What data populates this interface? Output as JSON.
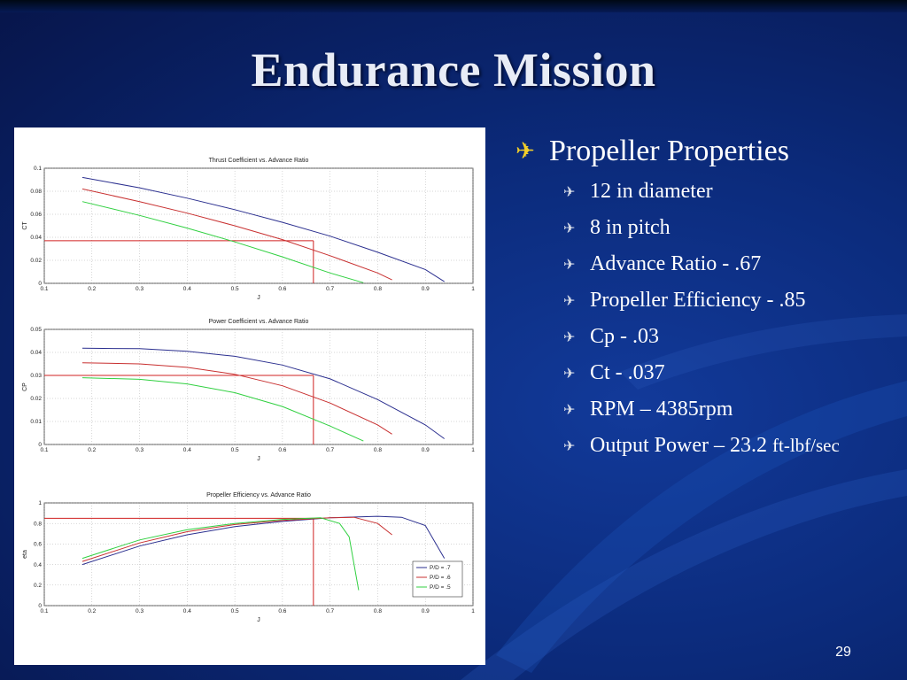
{
  "slide": {
    "title": "Endurance Mission",
    "page_number": "29",
    "colors": {
      "background": "#0b2a7a",
      "bullet_main": "#f2cf2a",
      "bullet_sub": "#d8dde8"
    }
  },
  "bullets": {
    "main": {
      "icon": "airplane-icon",
      "text": "Propeller Properties"
    },
    "items": [
      {
        "icon": "airplane-icon",
        "text": "12 in diameter"
      },
      {
        "icon": "airplane-icon",
        "text": "8 in pitch"
      },
      {
        "icon": "airplane-icon",
        "text": "Advance Ratio - .67"
      },
      {
        "icon": "airplane-icon",
        "text": "Propeller Efficiency - .85"
      },
      {
        "icon": "airplane-icon",
        "text": "Cp - .03"
      },
      {
        "icon": "airplane-icon",
        "text": "Ct - .037"
      },
      {
        "icon": "airplane-icon",
        "text": "RPM – 4385rpm"
      },
      {
        "icon": "airplane-icon",
        "text": "Output Power – 23.2",
        "suffix": "ft-lbf/sec"
      }
    ]
  },
  "chart_data": [
    {
      "type": "line",
      "title": "Thrust Coefficient vs. Advance Ratio",
      "xlabel": "J",
      "ylabel": "CT",
      "xlim": [
        0.1,
        1
      ],
      "ylim": [
        0,
        0.1
      ],
      "xticks": [
        "0.1",
        "0.2",
        "0.3",
        "0.4",
        "0.5",
        "0.6",
        "0.7",
        "0.8",
        "0.9",
        "1"
      ],
      "yticks": [
        "0",
        "0.02",
        "0.04",
        "0.06",
        "0.08",
        "0.1"
      ],
      "grid": true,
      "series": [
        {
          "color": "#2b2f8f",
          "x": [
            0.18,
            0.3,
            0.4,
            0.5,
            0.6,
            0.7,
            0.8,
            0.9,
            0.94
          ],
          "y": [
            0.092,
            0.083,
            0.074,
            0.064,
            0.053,
            0.041,
            0.027,
            0.012,
            0.0015
          ]
        },
        {
          "color": "#c83030",
          "x": [
            0.18,
            0.3,
            0.4,
            0.5,
            0.6,
            0.7,
            0.8,
            0.83
          ],
          "y": [
            0.082,
            0.071,
            0.061,
            0.05,
            0.038,
            0.024,
            0.009,
            0.003
          ]
        },
        {
          "color": "#30d040",
          "x": [
            0.18,
            0.3,
            0.4,
            0.5,
            0.6,
            0.7,
            0.77
          ],
          "y": [
            0.071,
            0.059,
            0.048,
            0.036,
            0.023,
            0.009,
            0.0005
          ]
        }
      ],
      "reference": {
        "x": 0.665,
        "y": 0.037,
        "color": "#d02020"
      }
    },
    {
      "type": "line",
      "title": "Power Coefficient vs. Advance Ratio",
      "xlabel": "J",
      "ylabel": "CP",
      "xlim": [
        0.1,
        1
      ],
      "ylim": [
        0,
        0.05
      ],
      "xticks": [
        "0.1",
        "0.2",
        "0.3",
        "0.4",
        "0.5",
        "0.6",
        "0.7",
        "0.8",
        "0.9",
        "1"
      ],
      "yticks": [
        "0",
        "0.01",
        "0.02",
        "0.03",
        "0.04",
        "0.05"
      ],
      "grid": true,
      "series": [
        {
          "color": "#2b2f8f",
          "x": [
            0.18,
            0.3,
            0.4,
            0.5,
            0.6,
            0.7,
            0.8,
            0.9,
            0.94
          ],
          "y": [
            0.0418,
            0.0416,
            0.0405,
            0.0383,
            0.0345,
            0.0285,
            0.0195,
            0.0085,
            0.0025
          ]
        },
        {
          "color": "#c83030",
          "x": [
            0.18,
            0.3,
            0.4,
            0.5,
            0.6,
            0.7,
            0.8,
            0.83
          ],
          "y": [
            0.0355,
            0.035,
            0.0335,
            0.0305,
            0.0255,
            0.018,
            0.0085,
            0.0045
          ]
        },
        {
          "color": "#30d040",
          "x": [
            0.18,
            0.3,
            0.4,
            0.5,
            0.6,
            0.7,
            0.77
          ],
          "y": [
            0.029,
            0.0283,
            0.0263,
            0.0225,
            0.0165,
            0.008,
            0.0015
          ]
        }
      ],
      "reference": {
        "x": 0.665,
        "y": 0.03,
        "color": "#d02020"
      }
    },
    {
      "type": "line",
      "title": "Propeller Efficiency vs. Advance Ratio",
      "xlabel": "J",
      "ylabel": "eta",
      "xlim": [
        0.1,
        1
      ],
      "ylim": [
        0,
        1
      ],
      "xticks": [
        "0.1",
        "0.2",
        "0.3",
        "0.4",
        "0.5",
        "0.6",
        "0.7",
        "0.8",
        "0.9",
        "1"
      ],
      "yticks": [
        "0",
        "0.2",
        "0.4",
        "0.6",
        "0.8",
        "1"
      ],
      "grid": true,
      "legend": {
        "position": "lower-right",
        "entries": [
          "P/D = .7",
          "P/D = .6",
          "P/D = .5"
        ]
      },
      "series": [
        {
          "name": "P/D = .7",
          "color": "#2b2f8f",
          "x": [
            0.18,
            0.3,
            0.4,
            0.5,
            0.6,
            0.7,
            0.8,
            0.85,
            0.9,
            0.94
          ],
          "y": [
            0.4,
            0.58,
            0.69,
            0.77,
            0.82,
            0.855,
            0.87,
            0.86,
            0.78,
            0.46
          ]
        },
        {
          "name": "P/D = .6",
          "color": "#c83030",
          "x": [
            0.18,
            0.3,
            0.4,
            0.5,
            0.6,
            0.7,
            0.75,
            0.8,
            0.83
          ],
          "y": [
            0.43,
            0.61,
            0.72,
            0.79,
            0.83,
            0.855,
            0.86,
            0.8,
            0.69
          ]
        },
        {
          "name": "P/D = .5",
          "color": "#30d040",
          "x": [
            0.18,
            0.3,
            0.4,
            0.5,
            0.6,
            0.68,
            0.72,
            0.74,
            0.76
          ],
          "y": [
            0.46,
            0.64,
            0.74,
            0.8,
            0.84,
            0.855,
            0.8,
            0.67,
            0.15
          ]
        }
      ],
      "reference": {
        "x": 0.665,
        "y": 0.85,
        "color": "#d02020"
      }
    }
  ]
}
